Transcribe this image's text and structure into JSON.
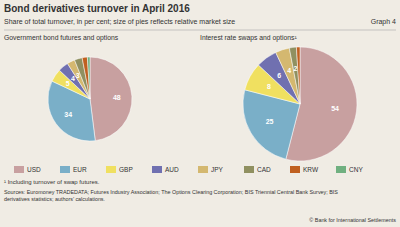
{
  "title": "Bond derivatives turnover in April 2016",
  "subtitle": "Share of total turnover, in per cent; size of pies reflects relative market size",
  "annotations": [
    "Graph 4",
    "¹ Including turnover of swap futures.",
    "Sources: Euromoney TRADEDATA; Futures Industry Association; The Options Clearing Corporation; BIS Triennial Central Bank Survey; BIS\nderivatives statistics; authors’ calculations.",
    "© Bank for International Settlements"
  ],
  "chart_data": [
    {
      "type": "pie",
      "title": "Government bond futures and options",
      "categories": [
        "USD",
        "EUR",
        "GBP",
        "AUD",
        "JPY",
        "CAD",
        "KRW",
        "CNY"
      ],
      "values": [
        48,
        34,
        5,
        4,
        3,
        3,
        2,
        1
      ],
      "value_labels": [
        "48",
        "34",
        "5",
        "4",
        "3",
        null,
        null,
        null
      ],
      "colors": [
        "#c8a0a0",
        "#7aafc8",
        "#f0e060",
        "#7070b0",
        "#d4b870",
        "#909060",
        "#c06020",
        "#70b080"
      ],
      "data_labels": true,
      "legend": "bottom"
    },
    {
      "type": "pie",
      "title": "Interest rate swaps and options¹",
      "categories": [
        "USD",
        "EUR",
        "GBP",
        "AUD",
        "JPY",
        "CAD",
        "KRW"
      ],
      "values": [
        54,
        25,
        8,
        6,
        4,
        2,
        1
      ],
      "value_labels": [
        "54",
        "25",
        "8",
        "6",
        "4",
        "2",
        null
      ],
      "colors": [
        "#c8a0a0",
        "#7aafc8",
        "#f0e060",
        "#7070b0",
        "#d4b870",
        "#909060",
        "#c06020"
      ],
      "data_labels": true
    }
  ]
}
